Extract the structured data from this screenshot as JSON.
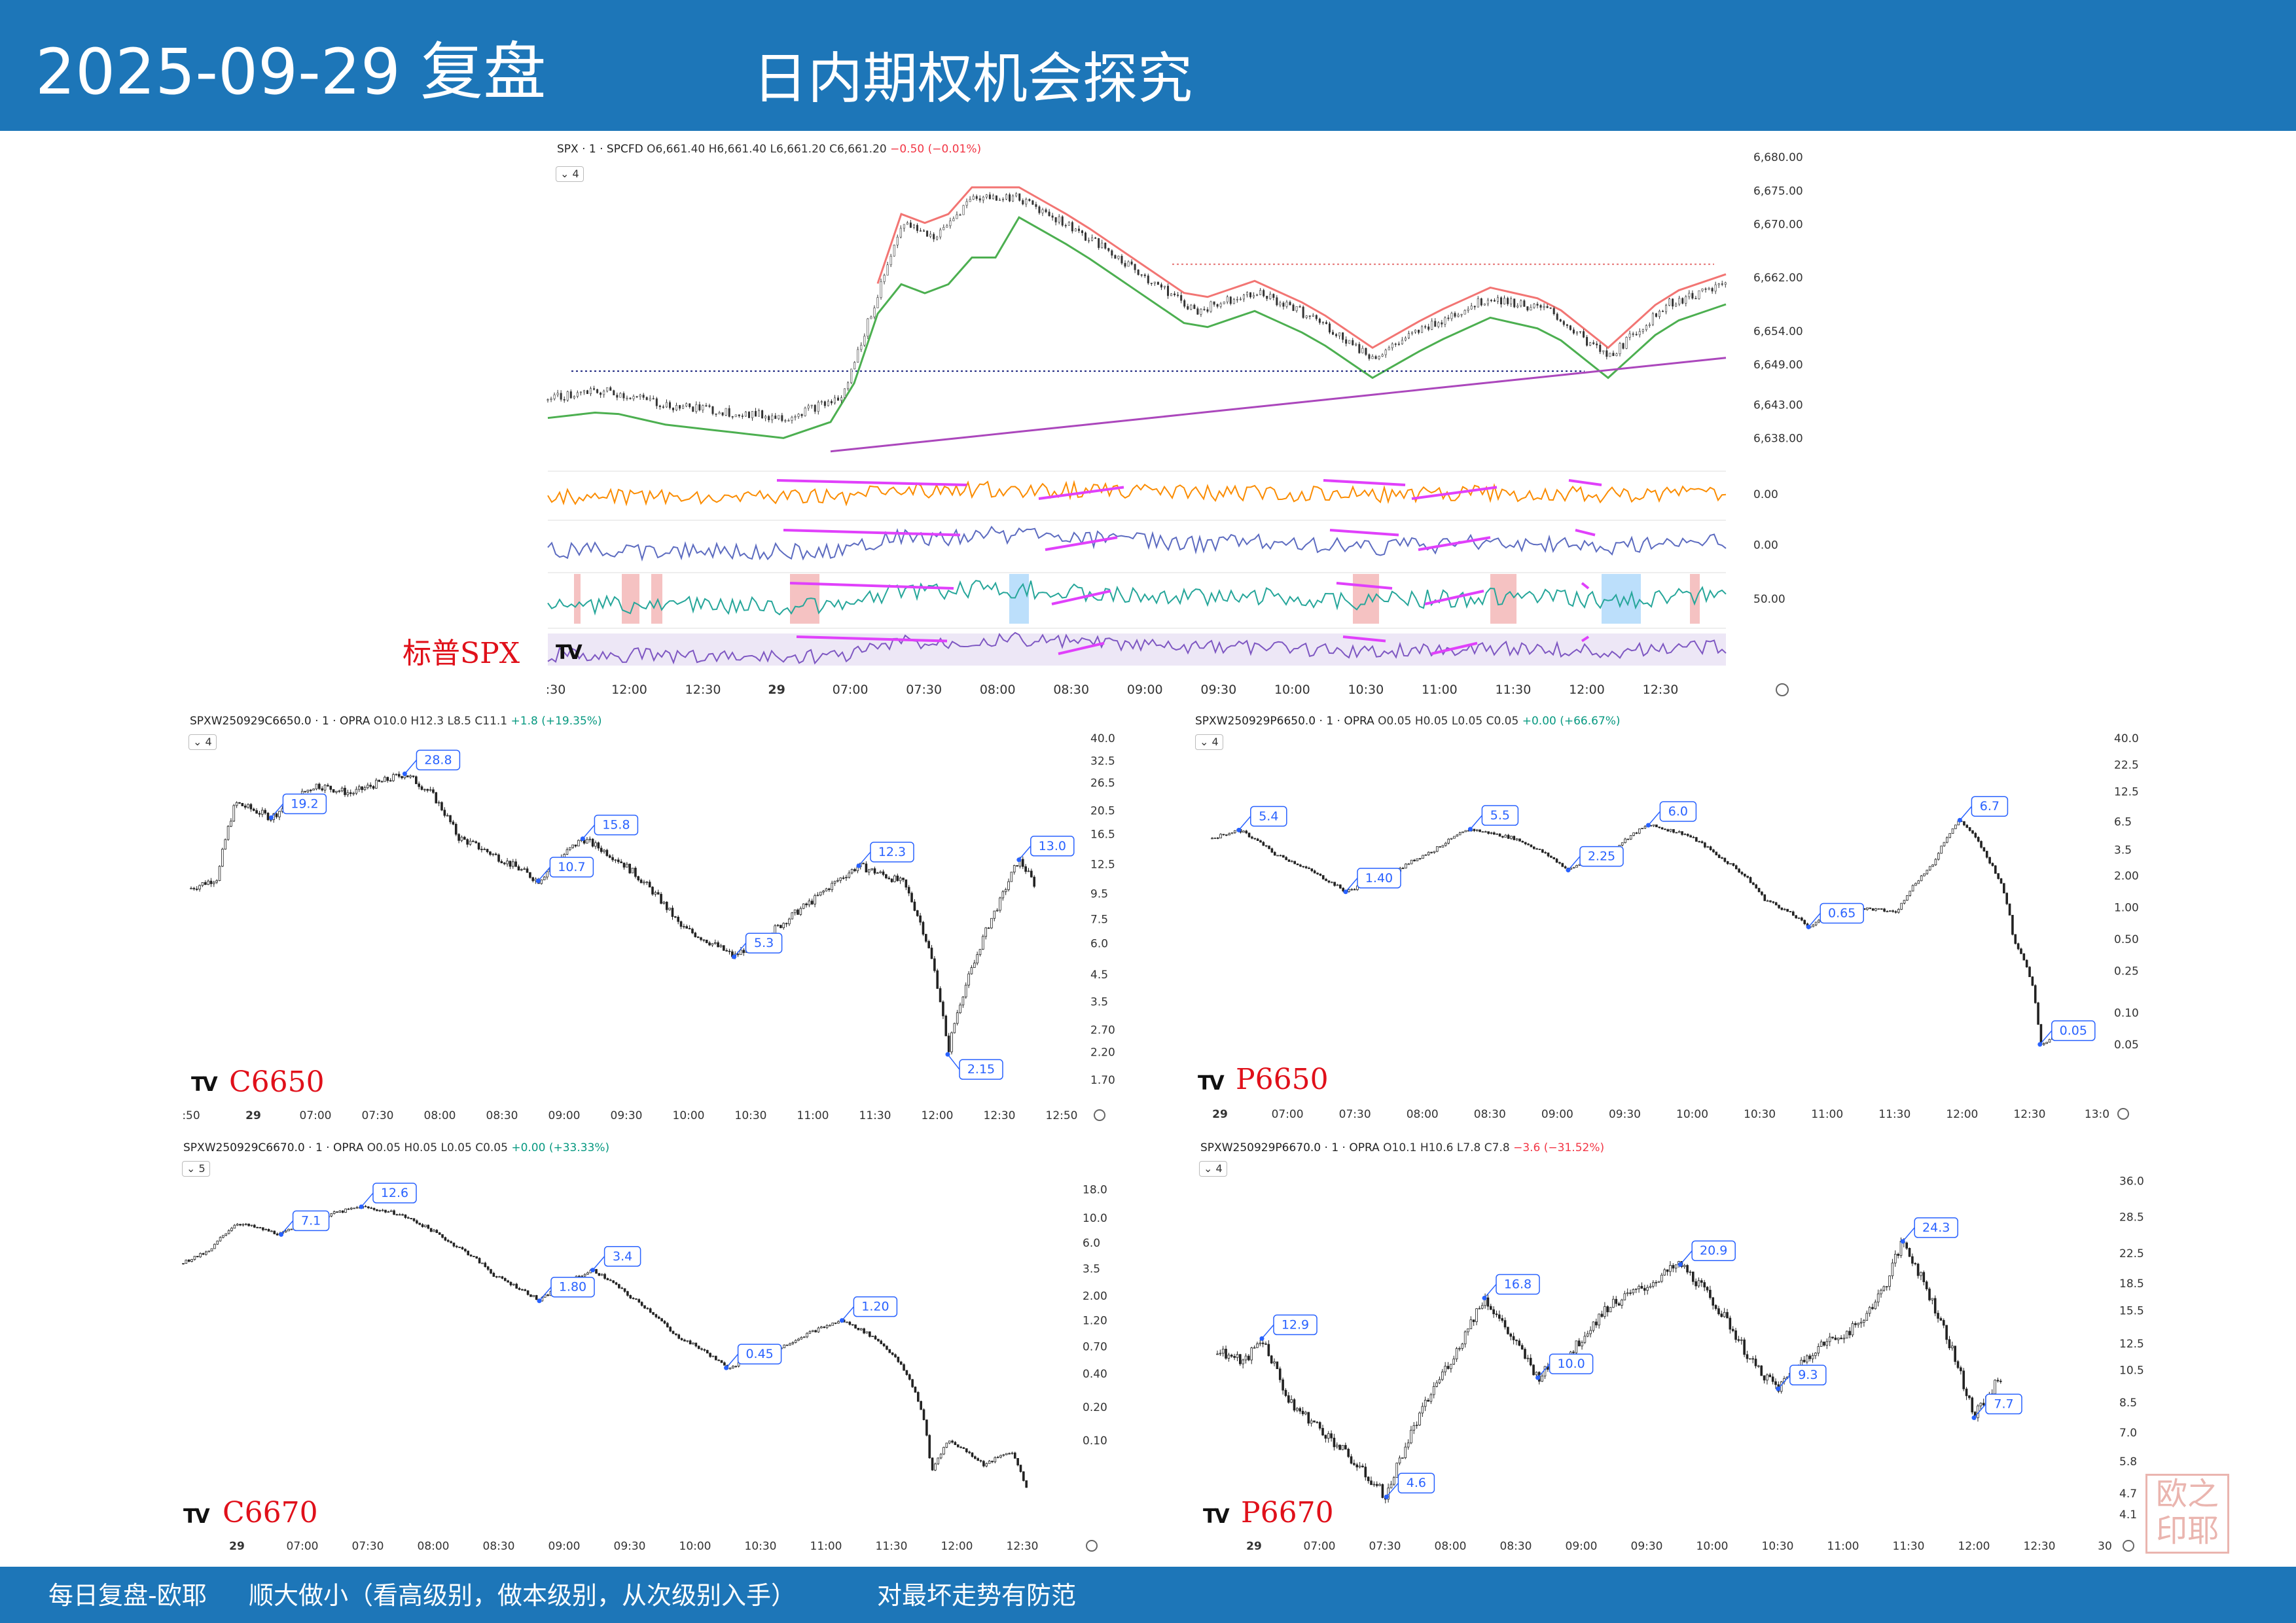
{
  "header": {
    "date": "2025-09-29 复盘",
    "title": "日内期权机会探究"
  },
  "footer": {
    "author": "每日复盘-欧耶",
    "motto": "顺大做小（看高级别，做本级别，从次级别入手）",
    "risk": "对最坏走势有防范"
  },
  "stamp": {
    "text": "欧耶之印"
  },
  "colors": {
    "callout": "#2962ff",
    "label_red": "#e0101a",
    "header_bg": "#1d76b8"
  },
  "chart_data": [
    {
      "id": "spx",
      "type": "line",
      "title": "SPX · 1 · SPCFD",
      "ohlc": {
        "o": "O6,661.40",
        "h": "H6,661.40",
        "l": "L6,661.20",
        "c": "C6,661.20",
        "chg": "−0.50 (−0.01%)"
      },
      "indicator_count": "4",
      "label": "标普SPX",
      "ylim": [
        6635,
        6681
      ],
      "yticks": [
        "6,680.00",
        "6,675.00",
        "6,670.00",
        "6,662.00",
        "6,654.00",
        "6,649.00",
        "6,643.00",
        "6,638.00"
      ],
      "ytick_values": [
        6680,
        6675,
        6670,
        6662,
        6654,
        6649,
        6643,
        6638
      ],
      "xticks": [
        ":30",
        "12:00",
        "12:30",
        "29",
        "07:00",
        "07:30",
        "08:00",
        "08:30",
        "09:00",
        "09:30",
        "10:00",
        "10:30",
        "11:00",
        "11:30",
        "12:00",
        "12:30"
      ],
      "indicator_values": [
        "0.00",
        "0.00",
        "50.00"
      ],
      "series": [
        {
          "x": [
            0,
            5,
            10,
            15,
            20,
            25,
            30,
            33,
            36,
            40,
            45,
            50,
            55,
            60,
            65,
            70,
            75,
            80,
            85,
            90,
            95,
            100
          ],
          "values": [
            6644,
            6645,
            6643,
            6642,
            6641,
            6644,
            6670,
            6668,
            6674,
            6674,
            6669,
            6663,
            6657,
            6660,
            6656,
            6650,
            6655,
            6659,
            6657,
            6650,
            6658,
            6661
          ]
        }
      ]
    },
    {
      "id": "c6650",
      "type": "line",
      "title": "SPXW250929C6650.0 · 1 · OPRA",
      "ohlc": {
        "o": "O10.0",
        "h": "H12.3",
        "l": "L8.5",
        "c": "C11.1",
        "chg": "+1.8 (+19.35%)"
      },
      "indicator_count": "4",
      "label": "C6650",
      "scale": "log",
      "ylim": [
        1.6,
        42
      ],
      "yticks": [
        "40.0",
        "32.5",
        "26.5",
        "20.5",
        "16.5",
        "12.5",
        "9.5",
        "7.5",
        "6.0",
        "4.5",
        "3.5",
        "2.70",
        "2.20",
        "1.70"
      ],
      "ytick_values": [
        40,
        32.5,
        26.5,
        20.5,
        16.5,
        12.5,
        9.5,
        7.5,
        6.0,
        4.5,
        3.5,
        2.7,
        2.2,
        1.7
      ],
      "xticks": [
        ":50",
        "29",
        "07:00",
        "07:30",
        "08:00",
        "08:30",
        "09:00",
        "09:30",
        "10:00",
        "10:30",
        "11:00",
        "11:30",
        "12:00",
        "12:30",
        "12:50"
      ],
      "callouts": [
        {
          "text": "28.8",
          "x": 24,
          "y": 28.8
        },
        {
          "text": "19.2",
          "x": 9,
          "y": 19.2
        },
        {
          "text": "15.8",
          "x": 44,
          "y": 15.8
        },
        {
          "text": "10.7",
          "x": 39,
          "y": 10.7
        },
        {
          "text": "12.3",
          "x": 75,
          "y": 12.3
        },
        {
          "text": "5.3",
          "x": 61,
          "y": 5.3
        },
        {
          "text": "13.0",
          "x": 93,
          "y": 13.0
        },
        {
          "text": "2.15",
          "x": 85,
          "y": 2.15
        }
      ],
      "series": [
        {
          "x": [
            0,
            3,
            5,
            9,
            14,
            18,
            24,
            27,
            30,
            35,
            39,
            44,
            48,
            55,
            61,
            66,
            70,
            75,
            80,
            85,
            88,
            91,
            93,
            95
          ],
          "values": [
            10,
            11,
            22,
            19.2,
            26,
            24,
            28.8,
            24,
            16,
            13,
            10.7,
            15.8,
            13,
            7,
            5.3,
            7,
            9,
            12.3,
            10.5,
            2.15,
            5,
            9,
            13.0,
            10
          ]
        }
      ]
    },
    {
      "id": "p6650",
      "type": "line",
      "title": "SPXW250929P6650.0 · 1 · OPRA",
      "ohlc": {
        "o": "O0.05",
        "h": "H0.05",
        "l": "L0.05",
        "c": "C0.05",
        "chg": "+0.00 (+66.67%)"
      },
      "indicator_count": "4",
      "label": "P6650",
      "scale": "log",
      "ylim": [
        0.02,
        45
      ],
      "yticks": [
        "40.0",
        "22.5",
        "12.5",
        "6.5",
        "3.5",
        "2.00",
        "1.00",
        "0.50",
        "0.25",
        "0.10",
        "0.05"
      ],
      "ytick_values": [
        40,
        22.5,
        12.5,
        6.5,
        3.5,
        2.0,
        1.0,
        0.5,
        0.25,
        0.1,
        0.05
      ],
      "xticks": [
        "29",
        "07:00",
        "07:30",
        "08:00",
        "08:30",
        "09:00",
        "09:30",
        "10:00",
        "10:30",
        "11:00",
        "11:30",
        "12:00",
        "12:30",
        "13:0"
      ],
      "callouts": [
        {
          "text": "5.4",
          "x": 3,
          "y": 5.4
        },
        {
          "text": "1.40",
          "x": 15,
          "y": 1.4
        },
        {
          "text": "5.5",
          "x": 29,
          "y": 5.5
        },
        {
          "text": "2.25",
          "x": 40,
          "y": 2.25
        },
        {
          "text": "6.0",
          "x": 49,
          "y": 6.0
        },
        {
          "text": "0.65",
          "x": 67,
          "y": 0.65
        },
        {
          "text": "6.7",
          "x": 84,
          "y": 6.7
        },
        {
          "text": "0.05",
          "x": 93,
          "y": 0.05
        }
      ],
      "series": [
        {
          "x": [
            0,
            3,
            7,
            12,
            15,
            20,
            25,
            29,
            34,
            38,
            40,
            45,
            49,
            53,
            57,
            62,
            67,
            72,
            77,
            81,
            84,
            87,
            90,
            93,
            95
          ],
          "values": [
            4.5,
            5.4,
            3.2,
            2.0,
            1.4,
            2.0,
            3.5,
            5.5,
            4.5,
            3.0,
            2.25,
            3.5,
            6.0,
            5.0,
            3.0,
            1.2,
            0.65,
            1.0,
            0.9,
            2.5,
            6.7,
            3.0,
            0.5,
            0.05,
            0.06
          ]
        }
      ]
    },
    {
      "id": "c6670",
      "type": "line",
      "title": "SPXW250929C6670.0 · 1 · OPRA",
      "ohlc": {
        "o": "O0.05",
        "h": "H0.05",
        "l": "L0.05",
        "c": "C0.05",
        "chg": "+0.00 (+33.33%)"
      },
      "indicator_count": "5",
      "label": "C6670",
      "scale": "log",
      "ylim": [
        0.02,
        30
      ],
      "yticks": [
        "18.0",
        "10.0",
        "6.0",
        "3.5",
        "2.00",
        "1.20",
        "0.70",
        "0.40",
        "0.20",
        "0.10"
      ],
      "ytick_values": [
        18,
        10,
        6,
        3.5,
        2.0,
        1.2,
        0.7,
        0.4,
        0.2,
        0.1
      ],
      "xticks": [
        "29",
        "07:00",
        "07:30",
        "08:00",
        "08:30",
        "09:00",
        "09:30",
        "10:00",
        "10:30",
        "11:00",
        "11:30",
        "12:00",
        "12:30"
      ],
      "callouts": [
        {
          "text": "12.6",
          "x": 20,
          "y": 12.6
        },
        {
          "text": "7.1",
          "x": 11,
          "y": 7.1
        },
        {
          "text": "3.4",
          "x": 46,
          "y": 3.4
        },
        {
          "text": "1.80",
          "x": 40,
          "y": 1.8
        },
        {
          "text": "1.20",
          "x": 74,
          "y": 1.2
        },
        {
          "text": "0.45",
          "x": 61,
          "y": 0.45
        }
      ],
      "series": [
        {
          "x": [
            0,
            3,
            6,
            11,
            15,
            20,
            24,
            30,
            35,
            40,
            46,
            50,
            55,
            61,
            66,
            70,
            74,
            78,
            82,
            84,
            86,
            90,
            93,
            95
          ],
          "values": [
            4,
            5,
            9,
            7.1,
            10,
            12.6,
            11,
            6,
            3,
            1.8,
            3.4,
            2.0,
            0.9,
            0.45,
            0.6,
            0.9,
            1.2,
            0.8,
            0.3,
            0.05,
            0.1,
            0.06,
            0.08,
            0.03
          ]
        }
      ]
    },
    {
      "id": "p6670",
      "type": "line",
      "title": "SPXW250929P6670.0 · 1 · OPRA",
      "ohlc": {
        "o": "O10.1",
        "h": "H10.6",
        "l": "L7.8",
        "c": "C7.8",
        "chg": "−3.6 (−31.52%)"
      },
      "indicator_count": "4",
      "label": "P6670",
      "scale": "log",
      "ylim": [
        4,
        40
      ],
      "yticks": [
        "36.0",
        "28.5",
        "22.5",
        "18.5",
        "15.5",
        "12.5",
        "10.5",
        "8.5",
        "7.0",
        "5.8",
        "4.7",
        "4.1"
      ],
      "ytick_values": [
        36,
        28.5,
        22.5,
        18.5,
        15.5,
        12.5,
        10.5,
        8.5,
        7.0,
        5.8,
        4.7,
        4.1
      ],
      "xticks": [
        "29",
        "07:00",
        "07:30",
        "08:00",
        "08:30",
        "09:00",
        "09:30",
        "10:00",
        "10:30",
        "11:00",
        "11:30",
        "12:00",
        "12:30",
        "30"
      ],
      "callouts": [
        {
          "text": "12.9",
          "x": 5,
          "y": 12.9
        },
        {
          "text": "4.6",
          "x": 19,
          "y": 4.6
        },
        {
          "text": "16.8",
          "x": 30,
          "y": 16.8
        },
        {
          "text": "10.0",
          "x": 36,
          "y": 10.0
        },
        {
          "text": "20.9",
          "x": 52,
          "y": 20.9
        },
        {
          "text": "9.3",
          "x": 63,
          "y": 9.3
        },
        {
          "text": "24.3",
          "x": 77,
          "y": 24.3
        },
        {
          "text": "7.7",
          "x": 85,
          "y": 7.7
        }
      ],
      "series": [
        {
          "x": [
            0,
            3,
            5,
            8,
            12,
            16,
            19,
            23,
            27,
            30,
            33,
            36,
            40,
            44,
            48,
            52,
            56,
            60,
            63,
            67,
            72,
            75,
            77,
            80,
            83,
            85,
            88
          ],
          "values": [
            12,
            11,
            12.9,
            8.5,
            7.0,
            5.5,
            4.6,
            8.0,
            12,
            16.8,
            13,
            10.0,
            12,
            16,
            18,
            20.9,
            16,
            11,
            9.3,
            12,
            14,
            18,
            24.3,
            17,
            11,
            7.7,
            10
          ]
        }
      ]
    }
  ]
}
